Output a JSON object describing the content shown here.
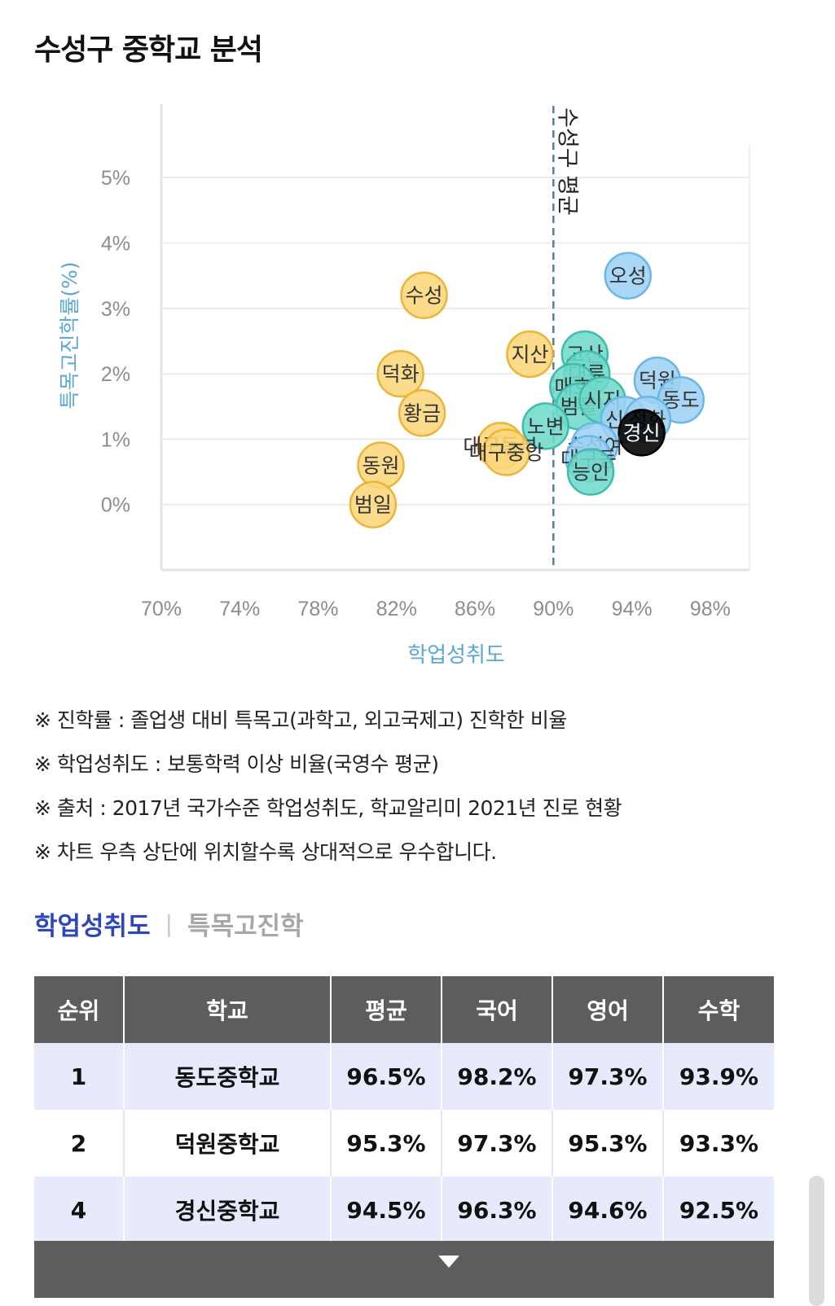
{
  "page": {
    "title": "수성구 중학교 분석"
  },
  "chart_data": {
    "type": "scatter",
    "xlabel": "학업성취도",
    "ylabel": "특목고진학률(%)",
    "xlim": [
      70,
      100
    ],
    "ylim": [
      -1,
      5.5
    ],
    "xticks": [
      "70%",
      "74%",
      "78%",
      "82%",
      "86%",
      "90%",
      "94%",
      "98%"
    ],
    "xtick_values": [
      70,
      74,
      78,
      82,
      86,
      90,
      94,
      98
    ],
    "yticks": [
      "5%",
      "4%",
      "3%",
      "2%",
      "1%",
      "0%"
    ],
    "ytick_values": [
      5,
      4,
      3,
      2,
      1,
      0
    ],
    "grid": true,
    "reference_line": {
      "x": 90,
      "label": "수성구 평균"
    },
    "colors": {
      "below_avg": "#fcd77a",
      "below_avg_border": "#eab53a",
      "above_low": "#6fdacb",
      "above_low_border": "#3fbcac",
      "above_high": "#9ed2f4",
      "above_high_border": "#6ab6e6",
      "highlight": "#000000"
    },
    "points": [
      {
        "name": "오성",
        "x": 93.8,
        "y": 3.5,
        "group": "above_high"
      },
      {
        "name": "수성",
        "x": 83.4,
        "y": 3.2,
        "group": "below_avg"
      },
      {
        "name": "지산",
        "x": 88.8,
        "y": 2.3,
        "group": "below_avg"
      },
      {
        "name": "고산",
        "x": 91.6,
        "y": 2.3,
        "group": "above_low"
      },
      {
        "name": "덕화",
        "x": 82.2,
        "y": 2.0,
        "group": "below_avg"
      },
      {
        "name": "대륜",
        "x": 91.7,
        "y": 2.0,
        "group": "above_low"
      },
      {
        "name": "매호",
        "x": 91.0,
        "y": 1.8,
        "group": "above_low"
      },
      {
        "name": "덕원",
        "x": 95.3,
        "y": 1.9,
        "group": "above_high"
      },
      {
        "name": "동도",
        "x": 96.5,
        "y": 1.6,
        "group": "above_high"
      },
      {
        "name": "범물",
        "x": 91.3,
        "y": 1.5,
        "group": "above_low"
      },
      {
        "name": "시지",
        "x": 92.5,
        "y": 1.6,
        "group": "above_low"
      },
      {
        "name": "황금",
        "x": 83.3,
        "y": 1.4,
        "group": "below_avg"
      },
      {
        "name": "신재",
        "x": 93.6,
        "y": 1.3,
        "group": "above_high"
      },
      {
        "name": "정화",
        "x": 94.8,
        "y": 1.3,
        "group": "above_high"
      },
      {
        "name": "경신",
        "x": 94.5,
        "y": 1.1,
        "group": "highlight"
      },
      {
        "name": "노변",
        "x": 89.6,
        "y": 1.2,
        "group": "above_low"
      },
      {
        "name": "대구동부",
        "x": 87.3,
        "y": 0.9,
        "group": "below_avg"
      },
      {
        "name": "대구중앙",
        "x": 87.6,
        "y": 0.8,
        "group": "below_avg"
      },
      {
        "name": "수성여",
        "x": 92.1,
        "y": 0.9,
        "group": "above_high"
      },
      {
        "name": "대구동",
        "x": 91.8,
        "y": 0.7,
        "group": "above_high"
      },
      {
        "name": "능인",
        "x": 91.9,
        "y": 0.5,
        "group": "above_low"
      },
      {
        "name": "동원",
        "x": 81.2,
        "y": 0.6,
        "group": "below_avg"
      },
      {
        "name": "범일",
        "x": 80.8,
        "y": 0.0,
        "group": "below_avg"
      }
    ]
  },
  "notes": [
    "※ 진학률 : 졸업생 대비 특목고(과학고, 외고국제고) 진학한 비율",
    "※ 학업성취도 : 보통학력 이상 비율(국영수 평균)",
    "※ 출처 : 2017년 국가수준 학업성취도, 학교알리미 2021년 진로 현황",
    "※ 차트 우측 상단에 위치할수록 상대적으로 우수합니다."
  ],
  "tabs": {
    "active": "학업성취도",
    "inactive": "특목고진학"
  },
  "table": {
    "headers": [
      "순위",
      "학교",
      "평균",
      "국어",
      "영어",
      "수학"
    ],
    "rows": [
      [
        "1",
        "동도중학교",
        "96.5%",
        "98.2%",
        "97.3%",
        "93.9%"
      ],
      [
        "2",
        "덕원중학교",
        "95.3%",
        "97.3%",
        "95.3%",
        "93.3%"
      ],
      [
        "4",
        "경신중학교",
        "94.5%",
        "96.3%",
        "94.6%",
        "92.5%"
      ]
    ]
  },
  "expand": {
    "icon": "triangle-down-icon"
  }
}
